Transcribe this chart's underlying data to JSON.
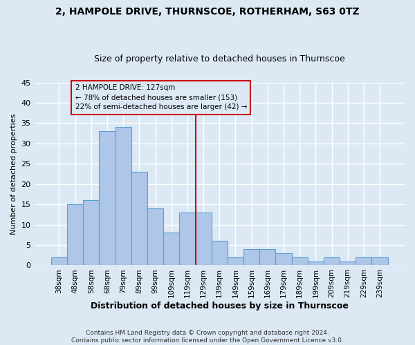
{
  "title1": "2, HAMPOLE DRIVE, THURNSCOE, ROTHERHAM, S63 0TZ",
  "title2": "Size of property relative to detached houses in Thurnscoe",
  "xlabel": "Distribution of detached houses by size in Thurnscoe",
  "ylabel": "Number of detached properties",
  "footnote": "Contains HM Land Registry data © Crown copyright and database right 2024.\nContains public sector information licensed under the Open Government Licence v3.0.",
  "bar_labels": [
    "38sqm",
    "48sqm",
    "58sqm",
    "68sqm",
    "79sqm",
    "89sqm",
    "99sqm",
    "109sqm",
    "119sqm",
    "129sqm",
    "139sqm",
    "149sqm",
    "159sqm",
    "169sqm",
    "179sqm",
    "189sqm",
    "199sqm",
    "209sqm",
    "219sqm",
    "229sqm",
    "239sqm"
  ],
  "bar_values": [
    2,
    15,
    16,
    33,
    34,
    23,
    14,
    8,
    13,
    13,
    6,
    2,
    4,
    4,
    3,
    2,
    1,
    2,
    1,
    2,
    2
  ],
  "bar_color": "#aec6e8",
  "bar_edge_color": "#5a9fd4",
  "vline_x_index": 9,
  "vline_color": "#cc0000",
  "annotation_text": "2 HAMPOLE DRIVE: 127sqm\n← 78% of detached houses are smaller (153)\n22% of semi-detached houses are larger (42) →",
  "annotation_box_color": "#cc0000",
  "ylim": [
    0,
    45
  ],
  "yticks": [
    0,
    5,
    10,
    15,
    20,
    25,
    30,
    35,
    40,
    45
  ],
  "background_color": "#dce9f5",
  "grid_color": "#ffffff",
  "title1_fontsize": 10,
  "title2_fontsize": 9,
  "ylabel_fontsize": 8,
  "xlabel_fontsize": 9,
  "footnote_fontsize": 6.5,
  "tick_fontsize": 8,
  "xtick_fontsize": 7.5
}
